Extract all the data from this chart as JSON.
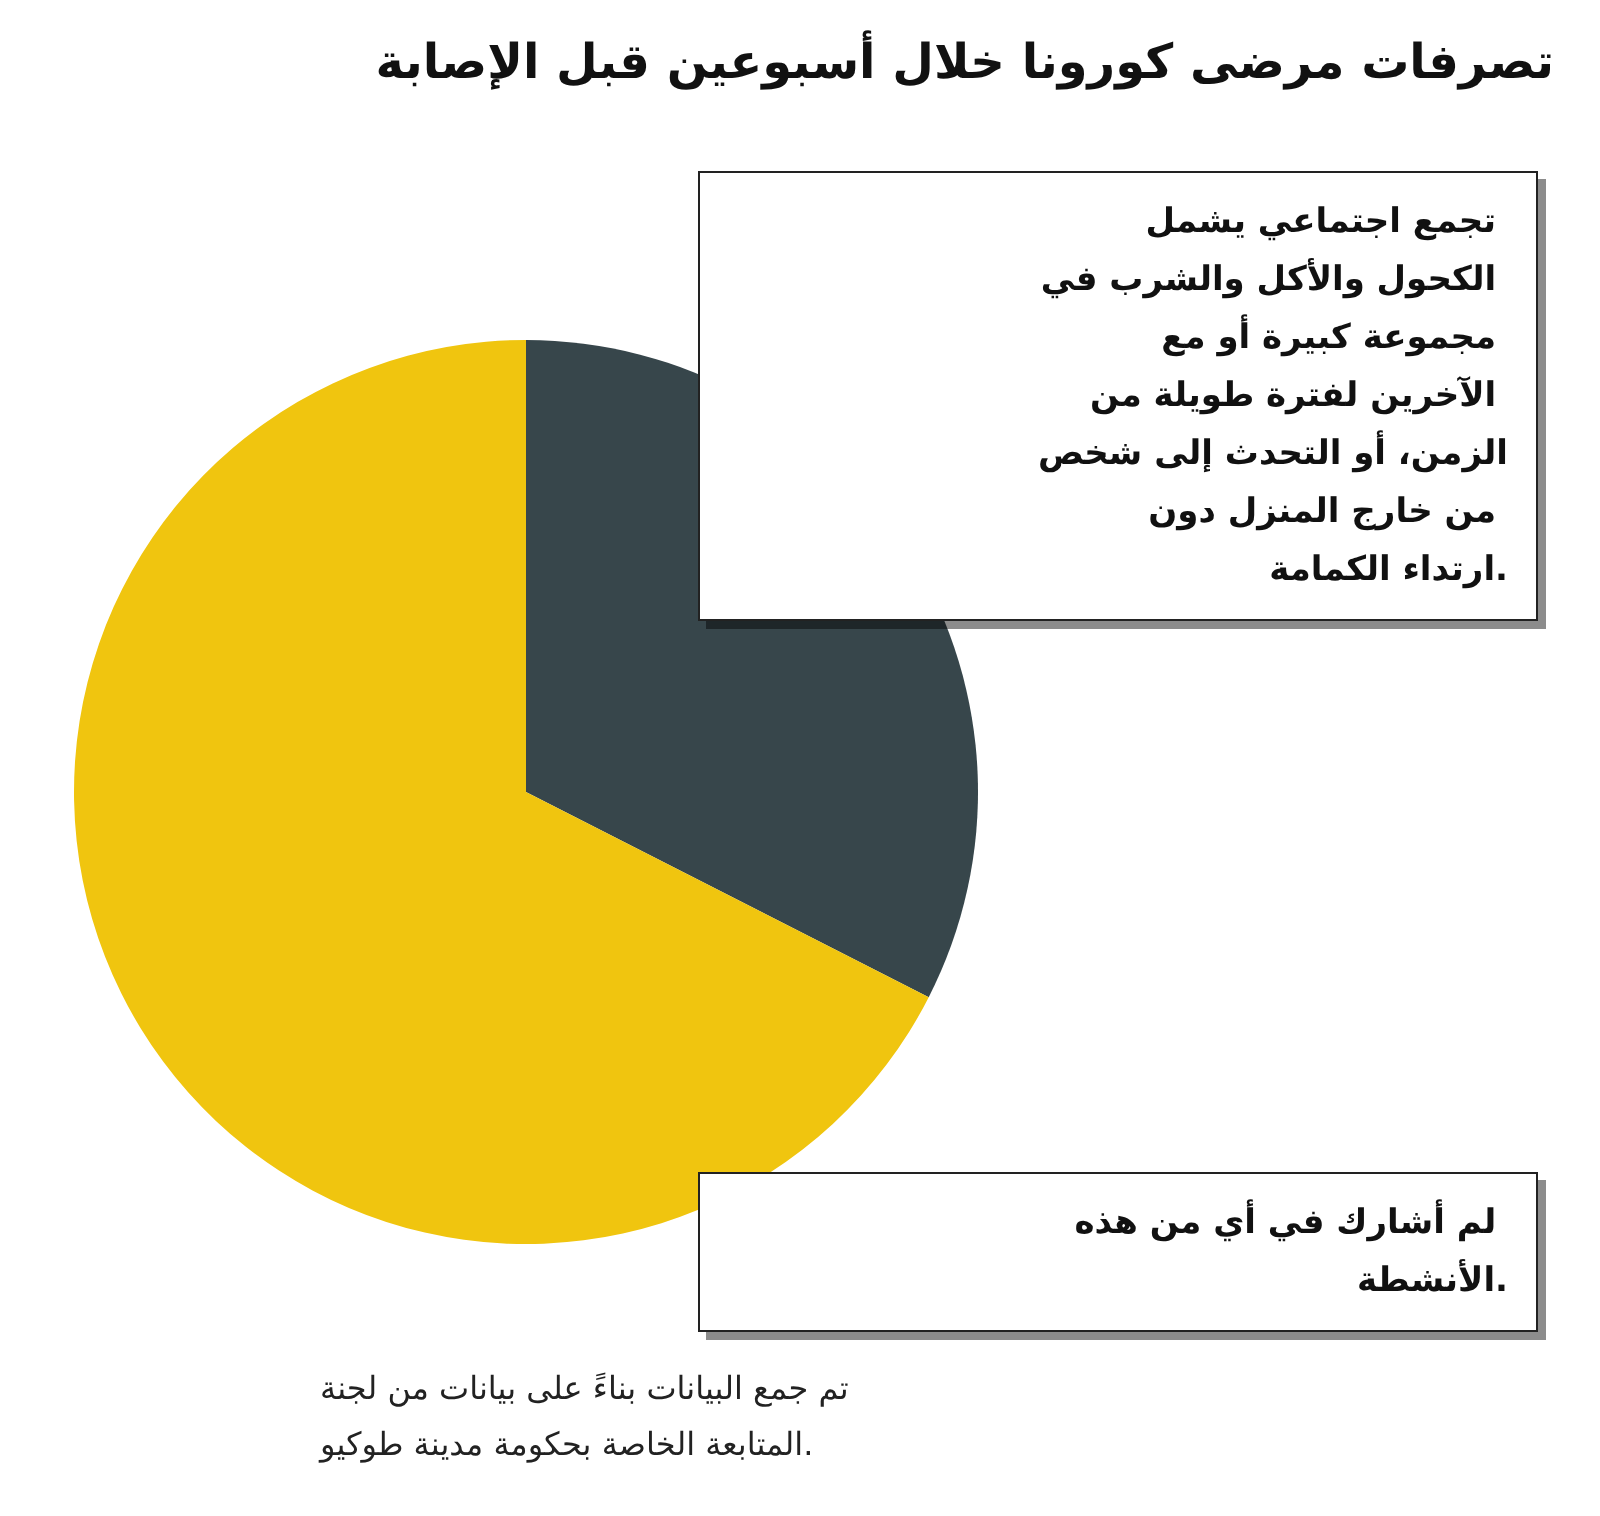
{
  "chart_data": {
    "type": "pie",
    "title": "تصرفات مرضى كورونا خلال أسبوعين قبل الإصابة",
    "categories": [
      "تجمع اجتماعي يشمل الكحول والأكل والشرب في مجموعة كبيرة أو مع الآخرين لفترة طويلة من الزمن، أو التحدث إلى شخص من خارج المنزل دون ارتداء الكمامة.",
      "لم أشارك في أي من هذه الأنشطة."
    ],
    "values": [
      32.5,
      67.5
    ],
    "colors": [
      "#37464b",
      "#f0c50f"
    ],
    "annotations": [
      "تم جمع البيانات بناءً على بيانات من لجنة المتابعة الخاصة بحكومة مدينة طوكيو."
    ]
  }
}
